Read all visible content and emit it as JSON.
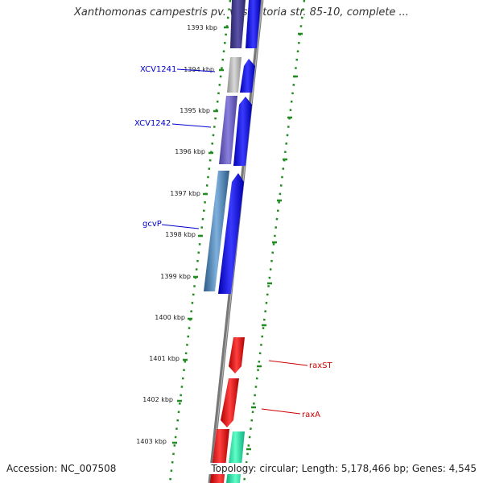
{
  "title": "Xanthomonas campestris pv. vesicatoria str. 85-10, complete ...",
  "footer": {
    "accession": "Accession: NC_007508",
    "topology": "Topology: circular; Length: 5,178,466 bp; Genes: 4,545"
  },
  "map": {
    "tick_labels": [
      "1393 kbp",
      "1394 kbp",
      "1395 kbp",
      "1396 kbp",
      "1397 kbp",
      "1398 kbp",
      "1399 kbp",
      "1400 kbp",
      "1401 kbp",
      "1402 kbp",
      "1403 kbp"
    ],
    "gene_labels": [
      {
        "text": "XCV1241",
        "color": "#0000cc"
      },
      {
        "text": "XCV1242",
        "color": "#0000cc"
      },
      {
        "text": "gcvP",
        "color": "#0000cc"
      },
      {
        "text": "raxST",
        "color": "#cc0000"
      },
      {
        "text": "raxA",
        "color": "#cc0000"
      }
    ],
    "colors": {
      "backbone": "#808080",
      "ruler": "#228b22",
      "forward_cds": "#0000ee",
      "reverse_cds": "#ee0000",
      "cog_purple": "#6b5fc7",
      "cog_gray": "#b0b0b0",
      "cog_steel": "#4682b4",
      "cog_teal": "#20e0a0"
    }
  }
}
